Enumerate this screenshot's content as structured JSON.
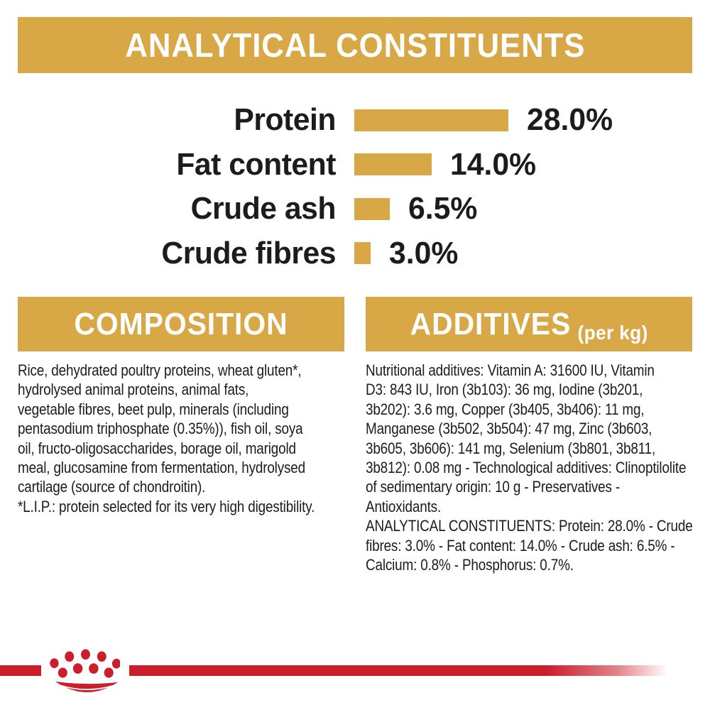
{
  "colors": {
    "gold": "#D9A846",
    "red": "#CB1E2B",
    "text": "#1C1C1C",
    "banner_text": "#FFFFFF"
  },
  "header": {
    "title": "ANALYTICAL CONSTITUENTS"
  },
  "chart_data": {
    "type": "bar",
    "orientation": "horizontal",
    "title": "ANALYTICAL CONSTITUENTS",
    "categories": [
      "Protein",
      "Fat content",
      "Crude ash",
      "Crude fibres"
    ],
    "values": [
      28.0,
      14.0,
      6.5,
      3.0
    ],
    "value_labels": [
      "28.0%",
      "14.0%",
      "6.5%",
      "3.0%"
    ],
    "unit": "percent",
    "bar_color": "#D9A846",
    "xlim": [
      0,
      30
    ],
    "grid": false,
    "legend": false
  },
  "composition": {
    "title": "COMPOSITION",
    "lines": [
      "Rice, dehydrated poultry proteins, wheat gluten*,",
      "hydrolysed animal proteins, animal fats,",
      "vegetable fibres, beet pulp, minerals (including",
      "pentasodium triphosphate (0.35%)), fish oil, soya",
      "oil, fructo-oligosaccharides, borage oil, marigold",
      "meal, glucosamine from fermentation, hydrolysed",
      "cartilage (source of chondroitin).",
      "*L.I.P.: protein selected for its very high digestibility."
    ]
  },
  "additives": {
    "title": "ADDITIVES",
    "title_suffix": "(per kg)",
    "lines": [
      "Nutritional additives: Vitamin A: 31600 IU, Vitamin",
      "D3: 843 IU, Iron (3b103): 36 mg, Iodine (3b201,",
      "3b202): 3.6 mg, Copper (3b405, 3b406): 11 mg,",
      "Manganese (3b502, 3b504): 47 mg, Zinc (3b603,",
      "3b605, 3b606): 141 mg, Selenium (3b801, 3b811,",
      "3b812): 0.08 mg - Technological additives: Clinoptilolite",
      "of sedimentary origin: 10 g - Preservatives -",
      "Antioxidants.",
      "ANALYTICAL CONSTITUENTS: Protein: 28.0% - Crude",
      "fibres: 3.0% - Fat content: 14.0% - Crude ash: 6.5% -",
      "Calcium: 0.8% - Phosphorus: 0.7%."
    ]
  },
  "footer": {
    "logo": "royal-canin-crown-paw-logo"
  }
}
